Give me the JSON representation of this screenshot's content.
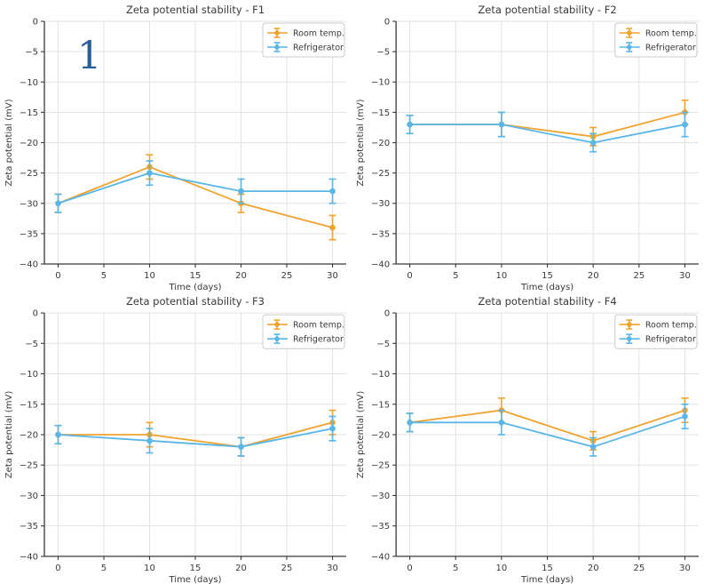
{
  "figure": {
    "background": "#ffffff"
  },
  "annotation": {
    "text": "1",
    "color": "#2a5e9a"
  },
  "style": {
    "axis_color": "#3a3a3a",
    "text_color": "#3a3a3a",
    "grid_color": "#e3e3e3",
    "legend_border_color": "#cccccc",
    "room_temp_color": "#f0a32f",
    "refrigerator_color": "#59b6e7"
  },
  "chart_data": [
    {
      "id": "F1",
      "type": "line",
      "title": "Zeta potential stability - F1",
      "xlabel": "Time (days)",
      "ylabel": "Zeta potential (mV)",
      "x": [
        0,
        10,
        20,
        30
      ],
      "xticks": [
        0,
        5,
        10,
        15,
        20,
        25,
        30
      ],
      "yticks": [
        0,
        -5,
        -10,
        -15,
        -20,
        -25,
        -30,
        -35,
        -40
      ],
      "xlim": [
        -1.5,
        31.5
      ],
      "ylim": [
        -40,
        0
      ],
      "grid": true,
      "legend_position": "upper right",
      "series": [
        {
          "name": "Room temp.",
          "color": "#f0a32f",
          "values": [
            -30,
            -24,
            -30,
            -34
          ],
          "errors": [
            1.5,
            2,
            1.5,
            2
          ]
        },
        {
          "name": "Refrigerator",
          "color": "#59b6e7",
          "values": [
            -30,
            -25,
            -28,
            -28
          ],
          "errors": [
            1.5,
            2,
            2,
            2
          ]
        }
      ]
    },
    {
      "id": "F2",
      "type": "line",
      "title": "Zeta potential stability - F2",
      "xlabel": "Time (days)",
      "ylabel": "Zeta potential (mV)",
      "x": [
        0,
        10,
        20,
        30
      ],
      "xticks": [
        0,
        5,
        10,
        15,
        20,
        25,
        30
      ],
      "yticks": [
        0,
        -5,
        -10,
        -15,
        -20,
        -25,
        -30,
        -35,
        -40
      ],
      "xlim": [
        -1.5,
        31.5
      ],
      "ylim": [
        -40,
        0
      ],
      "grid": true,
      "legend_position": "upper right",
      "series": [
        {
          "name": "Room temp.",
          "color": "#f0a32f",
          "values": [
            -17,
            -17,
            -19,
            -15
          ],
          "errors": [
            1.5,
            2,
            1.5,
            2
          ]
        },
        {
          "name": "Refrigerator",
          "color": "#59b6e7",
          "values": [
            -17,
            -17,
            -20,
            -17
          ],
          "errors": [
            1.5,
            2,
            1.5,
            2
          ]
        }
      ]
    },
    {
      "id": "F3",
      "type": "line",
      "title": "Zeta potential stability - F3",
      "xlabel": "Time (days)",
      "ylabel": "Zeta potential (mV)",
      "x": [
        0,
        10,
        20,
        30
      ],
      "xticks": [
        0,
        5,
        10,
        15,
        20,
        25,
        30
      ],
      "yticks": [
        0,
        -5,
        -10,
        -15,
        -20,
        -25,
        -30,
        -35,
        -40
      ],
      "xlim": [
        -1.5,
        31.5
      ],
      "ylim": [
        -40,
        0
      ],
      "grid": true,
      "legend_position": "upper right",
      "series": [
        {
          "name": "Room temp.",
          "color": "#f0a32f",
          "values": [
            -20,
            -20,
            -22,
            -18
          ],
          "errors": [
            1.5,
            2,
            1.5,
            2
          ]
        },
        {
          "name": "Refrigerator",
          "color": "#59b6e7",
          "values": [
            -20,
            -21,
            -22,
            -19
          ],
          "errors": [
            1.5,
            2,
            1.5,
            2
          ]
        }
      ]
    },
    {
      "id": "F4",
      "type": "line",
      "title": "Zeta potential stability - F4",
      "xlabel": "Time (days)",
      "ylabel": "Zeta potential (mV)",
      "x": [
        0,
        10,
        20,
        30
      ],
      "xticks": [
        0,
        5,
        10,
        15,
        20,
        25,
        30
      ],
      "yticks": [
        0,
        -5,
        -10,
        -15,
        -20,
        -25,
        -30,
        -35,
        -40
      ],
      "xlim": [
        -1.5,
        31.5
      ],
      "ylim": [
        -40,
        0
      ],
      "grid": true,
      "legend_position": "upper right",
      "series": [
        {
          "name": "Room temp.",
          "color": "#f0a32f",
          "values": [
            -18,
            -16,
            -21,
            -16
          ],
          "errors": [
            1.5,
            2,
            1.5,
            2
          ]
        },
        {
          "name": "Refrigerator",
          "color": "#59b6e7",
          "values": [
            -18,
            -18,
            -22,
            -17
          ],
          "errors": [
            1.5,
            2,
            1.5,
            2
          ]
        }
      ]
    }
  ]
}
